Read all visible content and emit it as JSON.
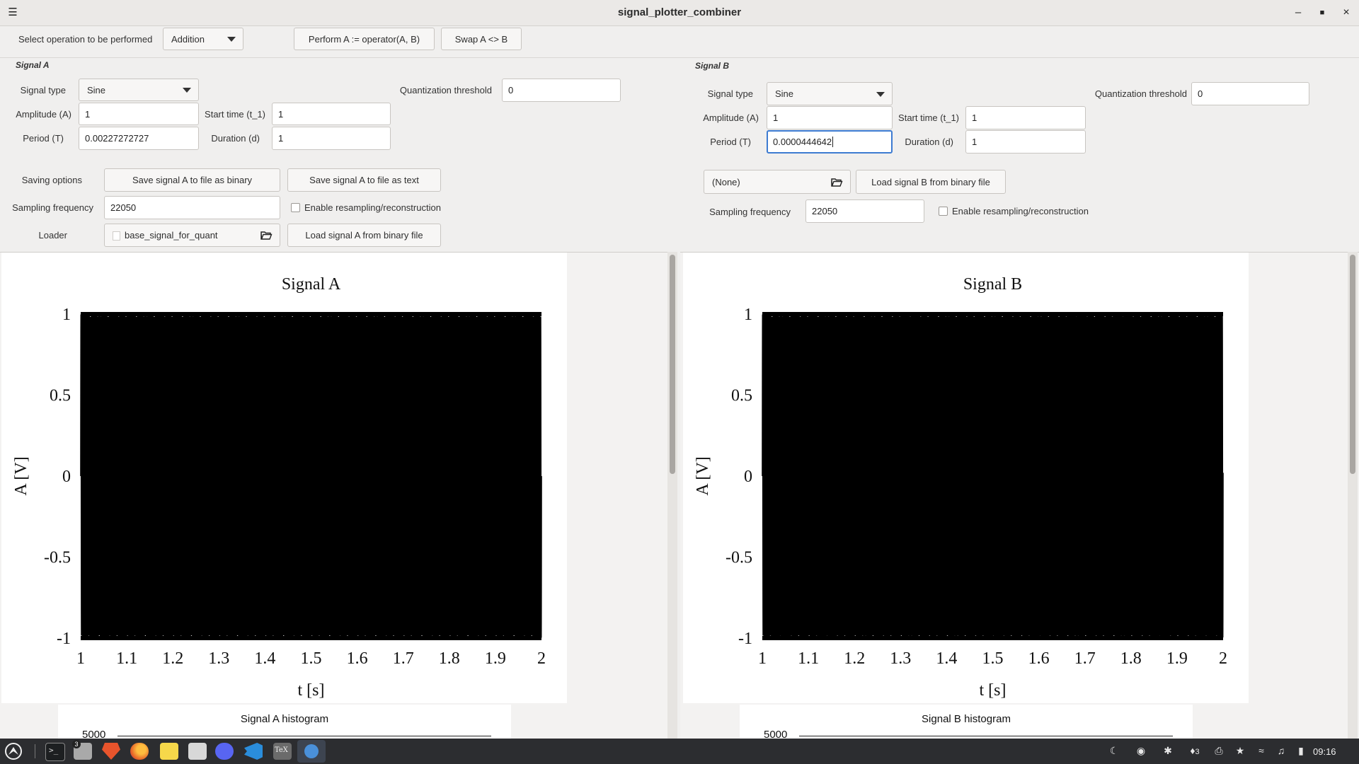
{
  "window": {
    "title": "signal_plotter_combiner"
  },
  "toolbar": {
    "op_label": "Select operation to be performed",
    "op_value": "Addition",
    "perform_label": "Perform A := operator(A, B)",
    "swap_label": "Swap A <> B"
  },
  "signal_a": {
    "section": "Signal A",
    "type_label": "Signal type",
    "type_value": "Sine",
    "quant_label": "Quantization threshold",
    "quant_value": "0",
    "amp_label": "Amplitude (A)",
    "amp_value": "1",
    "start_label": "Start time (t_1)",
    "start_value": "1",
    "period_label": "Period (T)",
    "period_value": "0.00227272727",
    "duration_label": "Duration (d)",
    "duration_value": "1",
    "saving_label": "Saving options",
    "save_bin_label": "Save signal A to file as binary",
    "save_txt_label": "Save signal A to file as text",
    "fs_label": "Sampling frequency",
    "fs_value": "22050",
    "resample_label": "Enable resampling/reconstruction",
    "loader_label": "Loader",
    "loader_file": "base_signal_for_quant",
    "load_label": "Load signal  A from binary file"
  },
  "signal_b": {
    "section": "Signal B",
    "type_label": "Signal type",
    "type_value": "Sine",
    "quant_label": "Quantization threshold",
    "quant_value": "0",
    "amp_label": "Amplitude (A)",
    "amp_value": "1",
    "start_label": "Start time (t_1)",
    "start_value": "1",
    "period_label": "Period (T)",
    "period_value": "0.0000444642",
    "duration_label": "Duration (d)",
    "duration_value": "1",
    "loader_file": "(None)",
    "load_label": "Load signal  B from binary file",
    "fs_label": "Sampling frequency",
    "fs_value": "22050",
    "resample_label": "Enable resampling/reconstruction"
  },
  "chart_data": [
    {
      "type": "line",
      "title": "Signal A",
      "xlabel": "t [s]",
      "ylabel": "A [V]",
      "xlim": [
        1,
        2
      ],
      "ylim": [
        -1,
        1
      ],
      "x_ticks": [
        "1",
        "1.1",
        "1.2",
        "1.3",
        "1.4",
        "1.5",
        "1.6",
        "1.7",
        "1.8",
        "1.9",
        "2"
      ],
      "y_ticks": [
        "1",
        "0.5",
        "0",
        "-0.5",
        "-1"
      ],
      "series": [
        {
          "function": "sine",
          "amplitude": 1,
          "period": 0.00227272727,
          "t_start": 1,
          "duration": 1,
          "sampling_frequency": 22050
        }
      ]
    },
    {
      "type": "line",
      "title": "Signal B",
      "xlabel": "t [s]",
      "ylabel": "A [V]",
      "xlim": [
        1,
        2
      ],
      "ylim": [
        -1,
        1
      ],
      "x_ticks": [
        "1",
        "1.1",
        "1.2",
        "1.3",
        "1.4",
        "1.5",
        "1.6",
        "1.7",
        "1.8",
        "1.9",
        "2"
      ],
      "y_ticks": [
        "1",
        "0.5",
        "0",
        "-0.5",
        "-1"
      ],
      "series": [
        {
          "function": "sine",
          "amplitude": 1,
          "period": 4.44642e-05,
          "t_start": 1,
          "duration": 1,
          "sampling_frequency": 22050
        }
      ]
    }
  ],
  "histograms": {
    "a_title": "Signal A histogram",
    "b_title": "Signal B histogram",
    "a_top_tick": "5000",
    "b_top_tick": "5000"
  },
  "taskbar": {
    "terminal_badge": "3",
    "tray_count": "3",
    "clock": "09:16"
  },
  "colors": {
    "accent": "#3d7bd1",
    "taskbar": "#2c2d30",
    "plot_line": "#000000"
  }
}
